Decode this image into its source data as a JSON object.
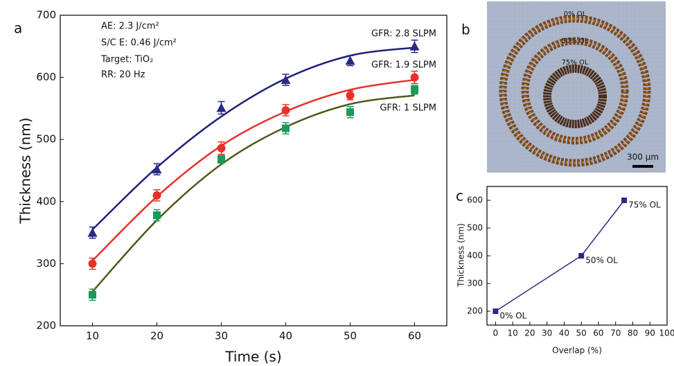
{
  "chart_data": [
    {
      "type": "scatter",
      "label": "a",
      "x_label": "Time (s)",
      "y_label": "Thickness (nm)",
      "annotations": [
        "AE: 2.3 J/cm²",
        "S/C E: 0.46 J/cm²",
        "Target: TiO₂",
        "RR: 20 Hz"
      ],
      "x": [
        10,
        20,
        30,
        40,
        50,
        60
      ],
      "series": [
        {
          "name": "GFR: 2.8 SLPM",
          "color": "#2a2a86",
          "marker": "triangle",
          "values": [
            350,
            452,
            551,
            596,
            627,
            650
          ],
          "errors": [
            9,
            9,
            10,
            9,
            8,
            10
          ],
          "fit": [
            355,
            455,
            537,
            598,
            635,
            648
          ]
        },
        {
          "name": "GFR: 1.9 SLPM",
          "color": "#e8302a",
          "marker": "circle",
          "values": [
            300,
            410,
            486,
            547,
            571,
            600
          ],
          "errors": [
            9,
            9,
            10,
            9,
            7,
            10
          ],
          "fit": [
            305,
            408,
            490,
            545,
            580,
            596
          ]
        },
        {
          "name": "GFR: 1 SLPM",
          "color": "#1a9a5a",
          "marker": "square",
          "values": [
            250,
            378,
            468,
            518,
            544,
            580
          ],
          "errors": [
            9,
            9,
            6,
            9,
            9,
            7
          ],
          "fit": [
            255,
            370,
            460,
            520,
            557,
            571
          ]
        }
      ],
      "fit_color": [
        "#1f1f7a",
        "#e8302a",
        "#4d5a1e"
      ],
      "xlim": [
        5,
        65
      ],
      "xticks": [
        10,
        20,
        30,
        40,
        50,
        60
      ],
      "ylim": [
        200,
        700
      ],
      "yticks": [
        200,
        300,
        400,
        500,
        600,
        700
      ]
    },
    {
      "type": "image",
      "label": "b",
      "annotations": [
        "0% OL",
        "50% OL",
        "75% OL"
      ],
      "scale_bar": "300 µm"
    },
    {
      "type": "line",
      "label": "c",
      "x_label": "Overlap (%)",
      "y_label": "Thickness (nm)",
      "x": [
        0,
        50,
        75
      ],
      "values": [
        200,
        400,
        600
      ],
      "labels": [
        "0% OL",
        "50% OL",
        "75% OL"
      ],
      "color": "#2a2a86",
      "xlim": [
        -5,
        100
      ],
      "xticks": [
        0,
        10,
        20,
        30,
        40,
        50,
        60,
        70,
        80,
        90,
        100
      ],
      "ylim": [
        150,
        650
      ],
      "yticks": [
        200,
        300,
        400,
        500,
        600
      ]
    }
  ]
}
